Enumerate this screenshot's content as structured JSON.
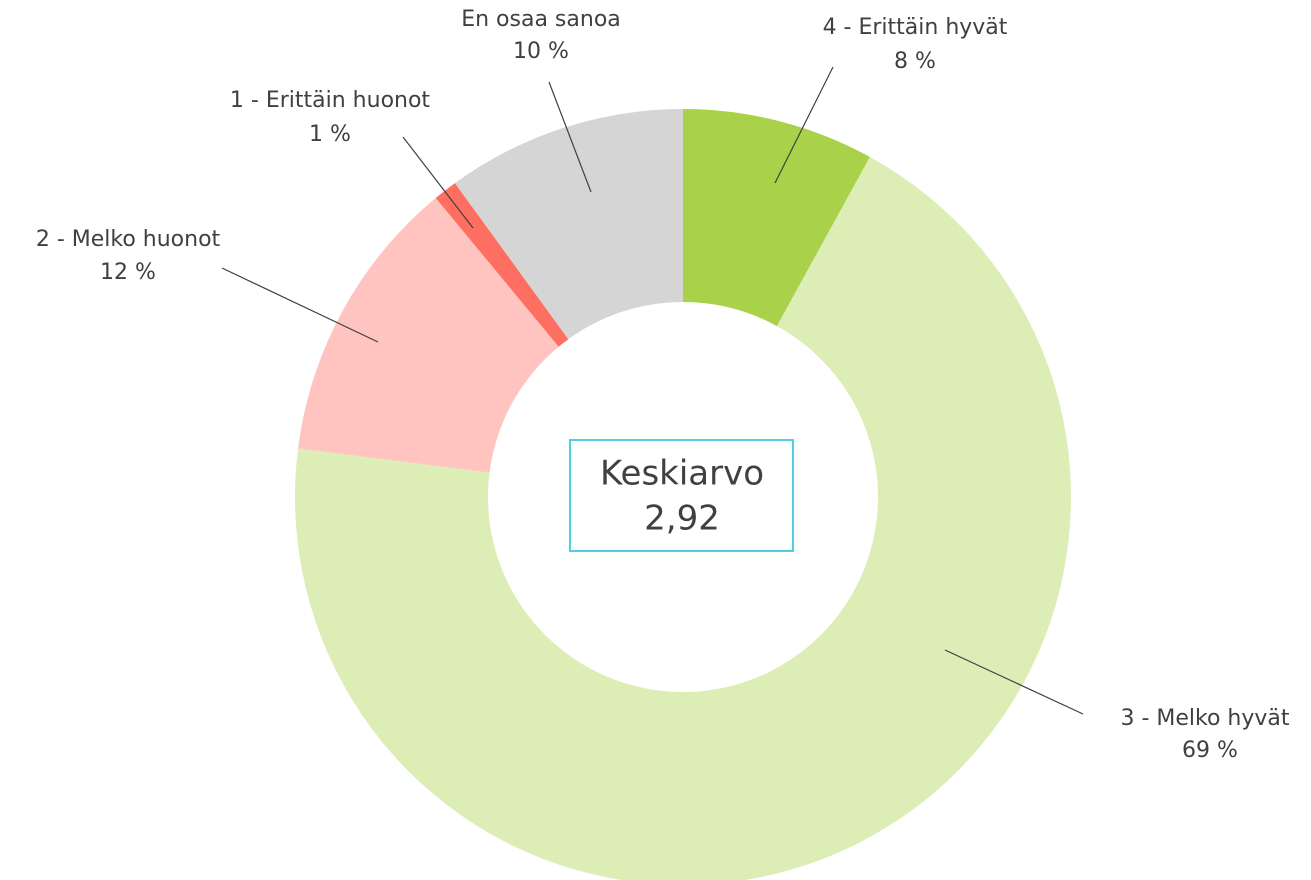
{
  "chart_data": {
    "type": "donut",
    "categories": [
      "4 - Erittäin hyvät",
      "3 - Melko hyvät",
      "2 - Melko huonot",
      "1 - Erittäin huonot",
      "En osaa sanoa"
    ],
    "values": [
      8,
      69,
      12,
      1,
      10
    ],
    "value_labels": [
      "8 %",
      "69 %",
      "12 %",
      "1 %",
      "10 %"
    ],
    "colors": [
      "#a9d14a",
      "#dcedb6",
      "#ffc3c0",
      "#ff6f61",
      "#d5d5d5"
    ],
    "center_label": [
      "Keskiarvo",
      "2,92"
    ]
  }
}
